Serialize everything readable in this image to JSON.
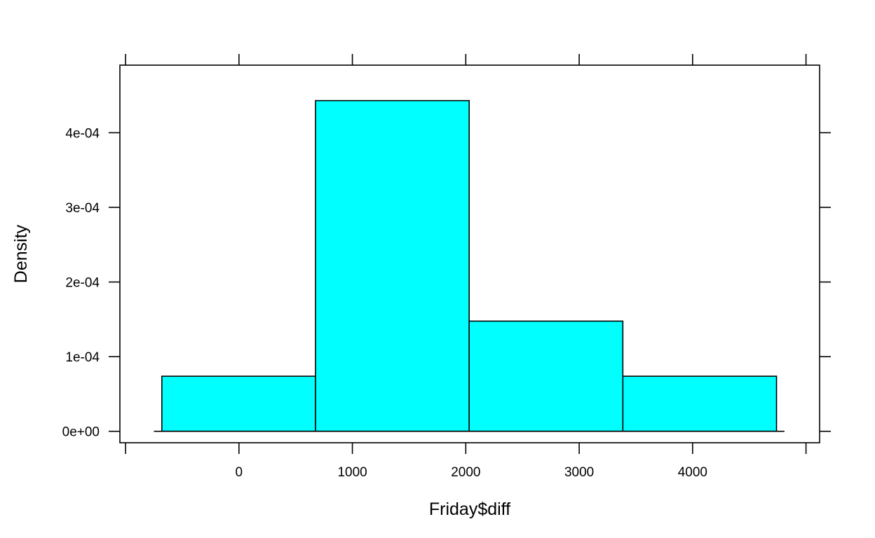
{
  "chart_data": {
    "type": "bar",
    "subtype": "histogram",
    "title": "",
    "xlabel": "Friday$diff",
    "ylabel": "Density",
    "bins": [
      {
        "x0": -680,
        "x1": 675,
        "density": 7.38e-05
      },
      {
        "x0": 675,
        "x1": 2030,
        "density": 0.000443
      },
      {
        "x0": 2030,
        "x1": 3385,
        "density": 0.0001476
      },
      {
        "x0": 3385,
        "x1": 4740,
        "density": 7.38e-05
      }
    ],
    "xlim": [
      -1050,
      5120
    ],
    "ylim": [
      -1.53e-05,
      0.0004905
    ],
    "x_ticks": [
      -1000,
      0,
      1000,
      2000,
      3000,
      4000,
      5000
    ],
    "x_tick_labels": [
      {
        "value": 0,
        "label": "0"
      },
      {
        "value": 1000,
        "label": "1000"
      },
      {
        "value": 2000,
        "label": "2000"
      },
      {
        "value": 3000,
        "label": "3000"
      },
      {
        "value": 4000,
        "label": "4000"
      }
    ],
    "y_tick_labels": [
      {
        "value": 0,
        "label": "0e+00"
      },
      {
        "value": 0.0001,
        "label": "1e-04"
      },
      {
        "value": 0.0002,
        "label": "2e-04"
      },
      {
        "value": 0.0003,
        "label": "3e-04"
      },
      {
        "value": 0.0004,
        "label": "4e-04"
      }
    ],
    "baseline": {
      "x0": -750,
      "x1": 4810
    },
    "bar_fill": "#00ffff",
    "bar_stroke": "#000000",
    "grid": false,
    "legend": "none"
  }
}
